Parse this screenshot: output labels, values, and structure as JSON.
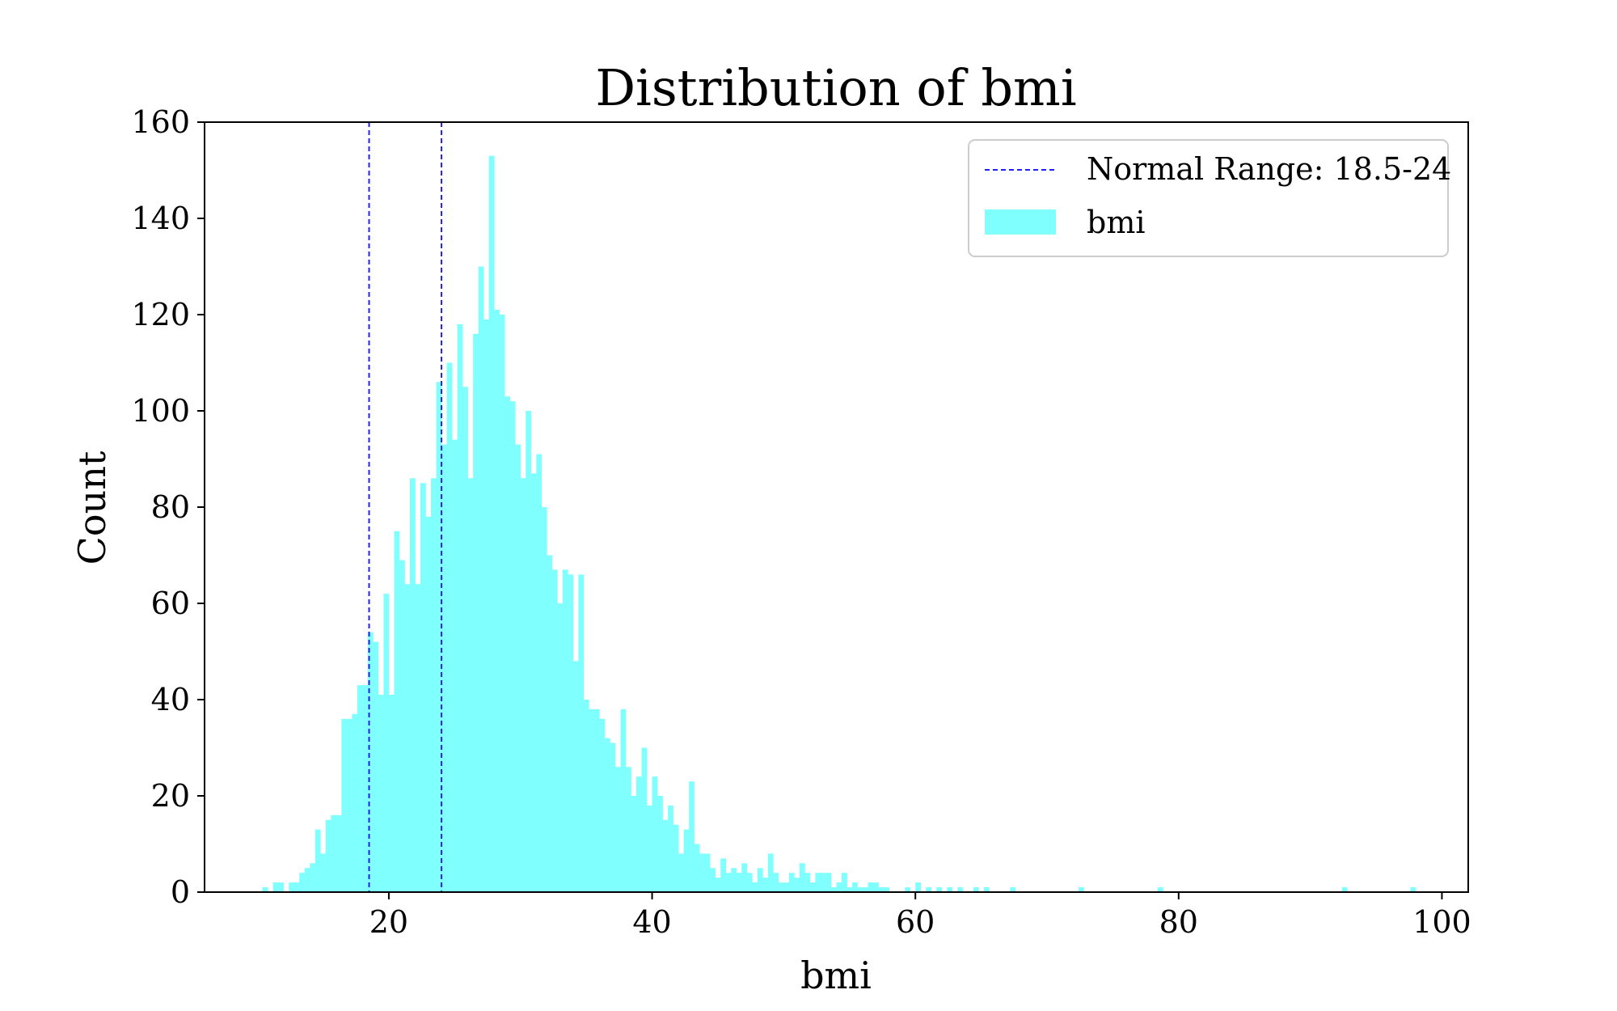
{
  "colors": {
    "bar_fill": "#80ffff",
    "line_color": "#1f1fff",
    "axis_color": "#000000",
    "background": "#ffffff"
  },
  "chart_data": {
    "type": "bar",
    "title": "Distribution of bmi",
    "xlabel": "bmi",
    "ylabel": "Count",
    "xlim": [
      6,
      102
    ],
    "ylim": [
      0,
      160
    ],
    "xticks": [
      20,
      40,
      60,
      80,
      100
    ],
    "yticks": [
      0,
      20,
      40,
      60,
      80,
      100,
      120,
      140,
      160
    ],
    "grid": false,
    "legend_position": "top-right",
    "legend": [
      {
        "label": "Normal Range: 18.5-24",
        "kind": "dashed-line"
      },
      {
        "label": "bmi",
        "kind": "patch"
      }
    ],
    "vertical_lines": [
      {
        "x": 18.5,
        "style": "dashed"
      },
      {
        "x": 24,
        "style": "dashed"
      }
    ],
    "histogram": {
      "bin_width": 0.4,
      "bins": [
        [
          10.4,
          1
        ],
        [
          11.2,
          2
        ],
        [
          11.6,
          2
        ],
        [
          12.4,
          2
        ],
        [
          12.8,
          2
        ],
        [
          13.2,
          4
        ],
        [
          13.6,
          5
        ],
        [
          14.0,
          6
        ],
        [
          14.4,
          13
        ],
        [
          14.8,
          8
        ],
        [
          15.2,
          15
        ],
        [
          15.6,
          16
        ],
        [
          16.0,
          16
        ],
        [
          16.4,
          36
        ],
        [
          16.8,
          36
        ],
        [
          17.2,
          37
        ],
        [
          17.6,
          43
        ],
        [
          18.0,
          43
        ],
        [
          18.4,
          54
        ],
        [
          18.8,
          52
        ],
        [
          19.2,
          41
        ],
        [
          19.6,
          62
        ],
        [
          20.0,
          41
        ],
        [
          20.4,
          75
        ],
        [
          20.8,
          69
        ],
        [
          21.2,
          64
        ],
        [
          21.6,
          86
        ],
        [
          22.0,
          64
        ],
        [
          22.4,
          85
        ],
        [
          22.8,
          78
        ],
        [
          23.2,
          86
        ],
        [
          23.6,
          106
        ],
        [
          24.0,
          93
        ],
        [
          24.4,
          110
        ],
        [
          24.8,
          94
        ],
        [
          25.2,
          118
        ],
        [
          25.6,
          105
        ],
        [
          26.0,
          86
        ],
        [
          26.4,
          116
        ],
        [
          26.8,
          130
        ],
        [
          27.2,
          119
        ],
        [
          27.6,
          153
        ],
        [
          28.0,
          121
        ],
        [
          28.4,
          120
        ],
        [
          28.8,
          103
        ],
        [
          29.2,
          102
        ],
        [
          29.6,
          93
        ],
        [
          30.0,
          86
        ],
        [
          30.4,
          100
        ],
        [
          30.8,
          87
        ],
        [
          31.2,
          91
        ],
        [
          31.6,
          80
        ],
        [
          32.0,
          70
        ],
        [
          32.4,
          67
        ],
        [
          32.8,
          60
        ],
        [
          33.2,
          67
        ],
        [
          33.6,
          66
        ],
        [
          34.0,
          48
        ],
        [
          34.4,
          66
        ],
        [
          34.8,
          40
        ],
        [
          35.2,
          38
        ],
        [
          35.6,
          38
        ],
        [
          36.0,
          36
        ],
        [
          36.4,
          32
        ],
        [
          36.8,
          31
        ],
        [
          37.2,
          26
        ],
        [
          37.6,
          38
        ],
        [
          38.0,
          26
        ],
        [
          38.4,
          20
        ],
        [
          38.8,
          24
        ],
        [
          39.2,
          30
        ],
        [
          39.6,
          18
        ],
        [
          40.0,
          24
        ],
        [
          40.4,
          20
        ],
        [
          40.8,
          15
        ],
        [
          41.2,
          18
        ],
        [
          41.6,
          14
        ],
        [
          42.0,
          8
        ],
        [
          42.4,
          13
        ],
        [
          42.8,
          23
        ],
        [
          43.2,
          10
        ],
        [
          43.6,
          8
        ],
        [
          44.0,
          8
        ],
        [
          44.4,
          5
        ],
        [
          44.8,
          3
        ],
        [
          45.2,
          7
        ],
        [
          45.6,
          4
        ],
        [
          46.0,
          5
        ],
        [
          46.4,
          4
        ],
        [
          46.8,
          6
        ],
        [
          47.2,
          4
        ],
        [
          47.6,
          2
        ],
        [
          48.0,
          5
        ],
        [
          48.4,
          3
        ],
        [
          48.8,
          8
        ],
        [
          49.2,
          4
        ],
        [
          49.6,
          2
        ],
        [
          50.0,
          2
        ],
        [
          50.4,
          4
        ],
        [
          50.8,
          3
        ],
        [
          51.2,
          6
        ],
        [
          51.6,
          4
        ],
        [
          52.0,
          2
        ],
        [
          52.4,
          4
        ],
        [
          52.8,
          4
        ],
        [
          53.2,
          4
        ],
        [
          53.6,
          1
        ],
        [
          54.0,
          2
        ],
        [
          54.4,
          4
        ],
        [
          54.8,
          1
        ],
        [
          55.2,
          2
        ],
        [
          55.6,
          1
        ],
        [
          56.0,
          1
        ],
        [
          56.4,
          2
        ],
        [
          56.8,
          2
        ],
        [
          57.2,
          1
        ],
        [
          57.6,
          1
        ],
        [
          59.2,
          1
        ],
        [
          60.0,
          2
        ],
        [
          60.8,
          1
        ],
        [
          61.6,
          1
        ],
        [
          62.4,
          1
        ],
        [
          63.2,
          1
        ],
        [
          64.4,
          1
        ],
        [
          65.2,
          1
        ],
        [
          67.2,
          1
        ],
        [
          72.4,
          1
        ],
        [
          78.4,
          1
        ],
        [
          92.4,
          1
        ],
        [
          97.6,
          1
        ]
      ]
    }
  }
}
